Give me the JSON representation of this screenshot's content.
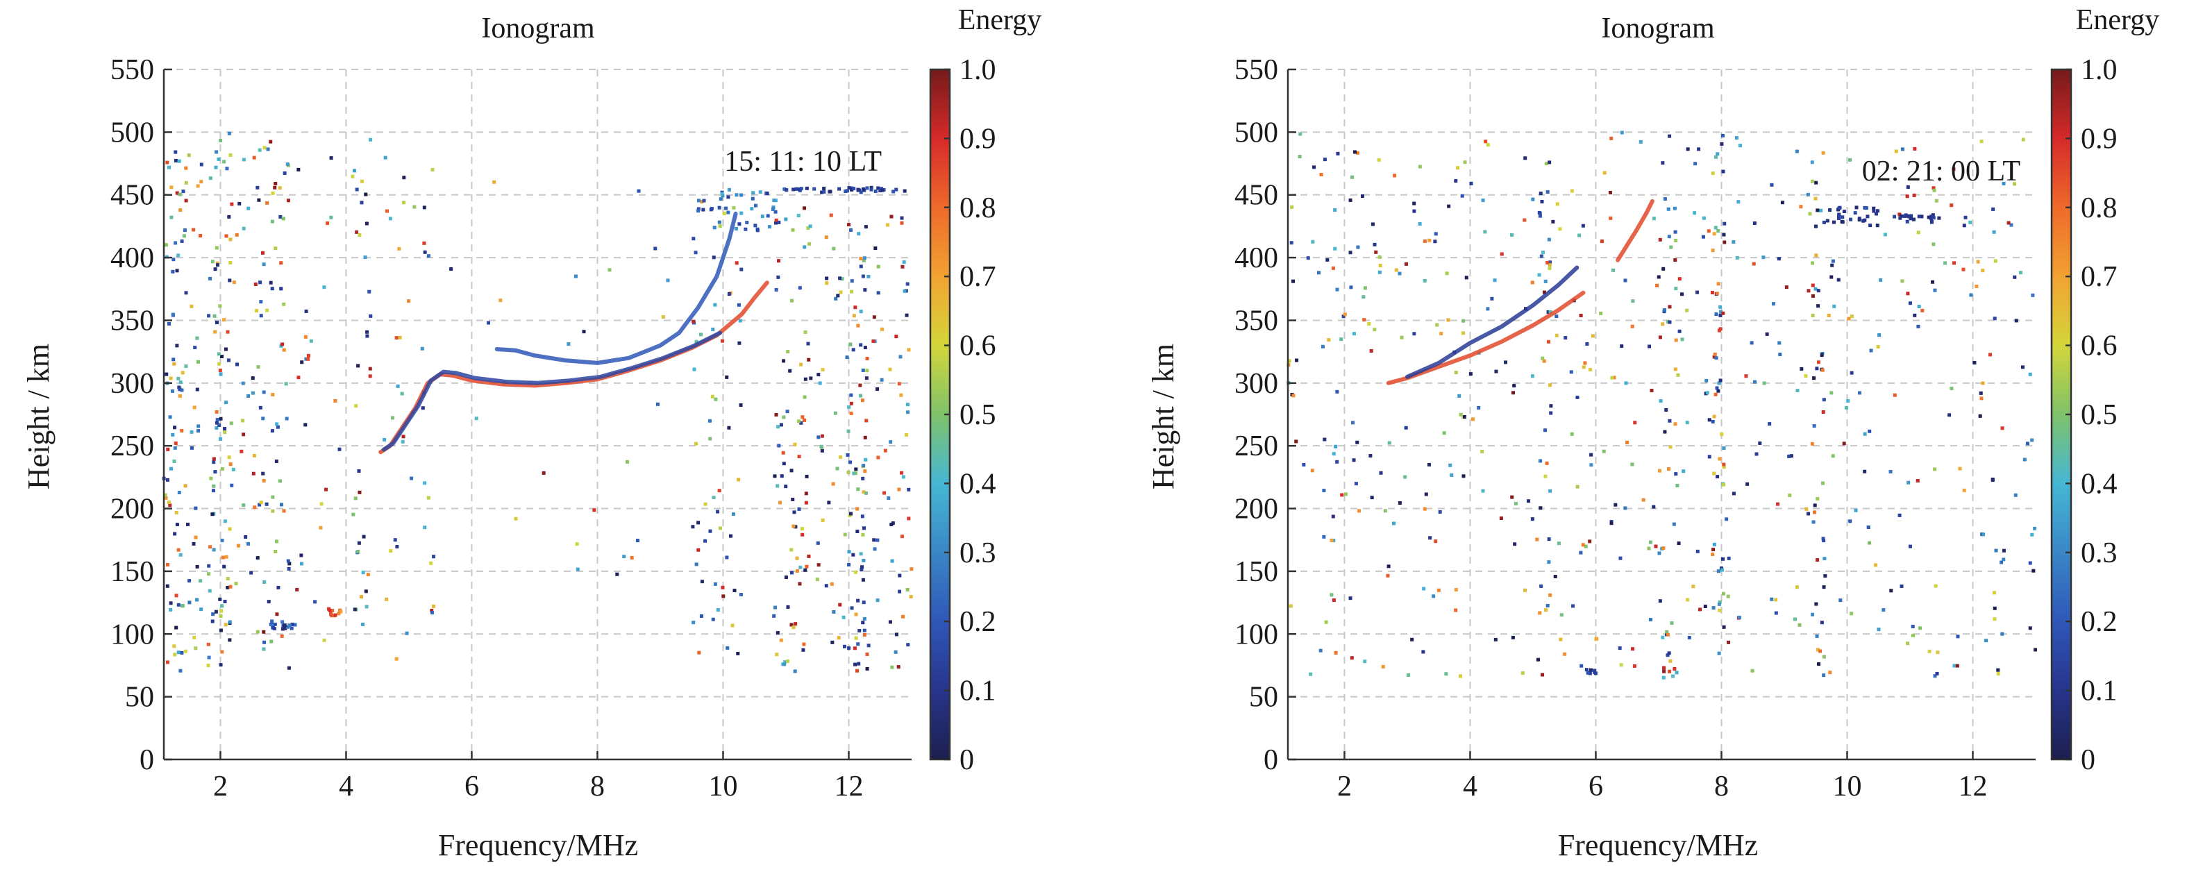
{
  "chart_data": [
    {
      "type": "scatter",
      "title": "Ionogram",
      "xlabel": "Frequency/MHz",
      "ylabel": "Height / km",
      "xlim": [
        1.1,
        13.0
      ],
      "ylim": [
        0,
        550
      ],
      "xticks": [
        2,
        4,
        6,
        8,
        10,
        12
      ],
      "yticks": [
        0,
        50,
        100,
        150,
        200,
        250,
        300,
        350,
        400,
        450,
        500,
        550
      ],
      "grid": true,
      "annotation": "15: 11: 10 LT",
      "colorbar": {
        "label": "Energy",
        "ticks": [
          "0",
          "0.1",
          "0.2",
          "0.3",
          "0.4",
          "0.5",
          "0.6",
          "0.7",
          "0.8",
          "0.9",
          "1.0"
        ]
      },
      "noise_seed": 1511,
      "noise": {
        "columns": [
          {
            "x": [
              1.1,
              1.4
            ],
            "y": [
              70,
              500
            ],
            "n": 70
          },
          {
            "x": [
              1.4,
              1.7
            ],
            "y": [
              70,
              500
            ],
            "n": 40
          },
          {
            "x": [
              1.8,
              2.2
            ],
            "y": [
              70,
              500
            ],
            "n": 90
          },
          {
            "x": [
              2.2,
              2.6
            ],
            "y": [
              70,
              500
            ],
            "n": 30
          },
          {
            "x": [
              2.6,
              3.1
            ],
            "y": [
              70,
              500
            ],
            "n": 70
          },
          {
            "x": [
              3.2,
              3.9
            ],
            "y": [
              70,
              500
            ],
            "n": 25
          },
          {
            "x": [
              4.1,
              4.4
            ],
            "y": [
              70,
              500
            ],
            "n": 35
          },
          {
            "x": [
              4.6,
              5.4
            ],
            "y": [
              70,
              480
            ],
            "n": 40
          },
          {
            "x": [
              5.5,
              9.3
            ],
            "y": [
              70,
              480
            ],
            "n": 25
          },
          {
            "x": [
              9.5,
              10.3
            ],
            "y": [
              70,
              450
            ],
            "n": 60
          },
          {
            "x": [
              10.8,
              11.4
            ],
            "y": [
              70,
              440
            ],
            "n": 80
          },
          {
            "x": [
              11.5,
              12.0
            ],
            "y": [
              70,
              440
            ],
            "n": 40
          },
          {
            "x": [
              12.0,
              12.3
            ],
            "y": [
              70,
              440
            ],
            "n": 80
          },
          {
            "x": [
              12.3,
              13.0
            ],
            "y": [
              70,
              440
            ],
            "n": 60
          }
        ],
        "clusters": [
          {
            "x": [
              2.8,
              3.2
            ],
            "y": [
              104,
              108
            ],
            "n": 18,
            "e": [
              0.05,
              0.3
            ]
          },
          {
            "x": [
              3.7,
              3.95
            ],
            "y": [
              114,
              120
            ],
            "n": 10,
            "e": [
              0.7,
              0.9
            ]
          },
          {
            "x": [
              9.6,
              11.0
            ],
            "y": [
              420,
              455
            ],
            "n": 45,
            "e": [
              0.1,
              0.4
            ]
          },
          {
            "x": [
              11.0,
              12.9
            ],
            "y": [
              452,
              456
            ],
            "n": 40,
            "e": [
              0.05,
              0.2
            ]
          }
        ]
      },
      "traces": [
        {
          "x": [
            4.55,
            4.7,
            4.9,
            5.1,
            5.3,
            5.5,
            5.7,
            6.0,
            6.5,
            7.0,
            7.5,
            8.0,
            8.5,
            9.0,
            9.5,
            9.9,
            10.3,
            10.5,
            10.7
          ],
          "y": [
            245,
            250,
            265,
            280,
            300,
            307,
            306,
            302,
            299,
            298,
            300,
            303,
            310,
            318,
            328,
            338,
            355,
            368,
            380
          ],
          "e": 0.85
        },
        {
          "x": [
            4.6,
            4.75,
            4.95,
            5.15,
            5.35,
            5.55,
            5.75,
            6.05,
            6.55,
            7.05,
            7.55,
            8.05,
            8.55,
            9.05,
            9.55,
            9.95
          ],
          "y": [
            247,
            252,
            267,
            282,
            302,
            309,
            308,
            304,
            301,
            300,
            302,
            305,
            312,
            320,
            330,
            340
          ],
          "e": 0.15
        },
        {
          "x": [
            6.4,
            6.7,
            7.0,
            7.5,
            8.0,
            8.5,
            9.0,
            9.3,
            9.6,
            9.9,
            10.1,
            10.2
          ],
          "y": [
            327,
            326,
            322,
            318,
            316,
            320,
            330,
            340,
            360,
            385,
            415,
            435
          ],
          "e": 0.2
        }
      ]
    },
    {
      "type": "scatter",
      "title": "Ionogram",
      "xlabel": "Frequency/MHz",
      "ylabel": "Height / km",
      "xlim": [
        1.1,
        13.0
      ],
      "ylim": [
        0,
        550
      ],
      "xticks": [
        2,
        4,
        6,
        8,
        10,
        12
      ],
      "yticks": [
        0,
        50,
        100,
        150,
        200,
        250,
        300,
        350,
        400,
        450,
        500,
        550
      ],
      "grid": true,
      "annotation": "02: 21: 00 LT",
      "colorbar": {
        "label": "Energy",
        "ticks": [
          "0",
          "0.1",
          "0.2",
          "0.3",
          "0.4",
          "0.5",
          "0.6",
          "0.7",
          "0.8",
          "0.9",
          "1.0"
        ]
      },
      "noise_seed": 221,
      "noise": {
        "columns": [
          {
            "x": [
              1.1,
              13.0
            ],
            "y": [
              65,
              500
            ],
            "n": 500
          },
          {
            "x": [
              5.1,
              5.3
            ],
            "y": [
              65,
              500
            ],
            "n": 35
          },
          {
            "x": [
              7.0,
              7.3
            ],
            "y": [
              65,
              500
            ],
            "n": 35
          },
          {
            "x": [
              7.85,
              8.05
            ],
            "y": [
              65,
              500
            ],
            "n": 45
          },
          {
            "x": [
              9.4,
              9.65
            ],
            "y": [
              65,
              500
            ],
            "n": 40
          },
          {
            "x": [
              1.8,
              2.3
            ],
            "y": [
              65,
              500
            ],
            "n": 20
          }
        ],
        "clusters": [
          {
            "x": [
              5.8,
              6.0
            ],
            "y": [
              68,
              72
            ],
            "n": 8,
            "e": [
              0.05,
              0.2
            ]
          },
          {
            "x": [
              9.6,
              10.8
            ],
            "y": [
              425,
              440
            ],
            "n": 30,
            "e": [
              0.05,
              0.2
            ]
          },
          {
            "x": [
              10.8,
              11.6
            ],
            "y": [
              428,
              434
            ],
            "n": 20,
            "e": [
              0.05,
              0.15
            ]
          }
        ]
      },
      "traces": [
        {
          "x": [
            2.7,
            3.0,
            3.5,
            4.0,
            4.5,
            5.0,
            5.4,
            5.8
          ],
          "y": [
            300,
            304,
            313,
            322,
            333,
            346,
            358,
            372
          ],
          "e": 0.85
        },
        {
          "x": [
            3.0,
            3.5,
            4.0,
            4.5,
            5.0,
            5.4,
            5.7
          ],
          "y": [
            305,
            316,
            332,
            345,
            362,
            378,
            392
          ],
          "e": 0.12
        },
        {
          "x": [
            6.35,
            6.5,
            6.65,
            6.8,
            6.9
          ],
          "y": [
            398,
            410,
            422,
            435,
            445
          ],
          "e": 0.85
        }
      ]
    }
  ]
}
